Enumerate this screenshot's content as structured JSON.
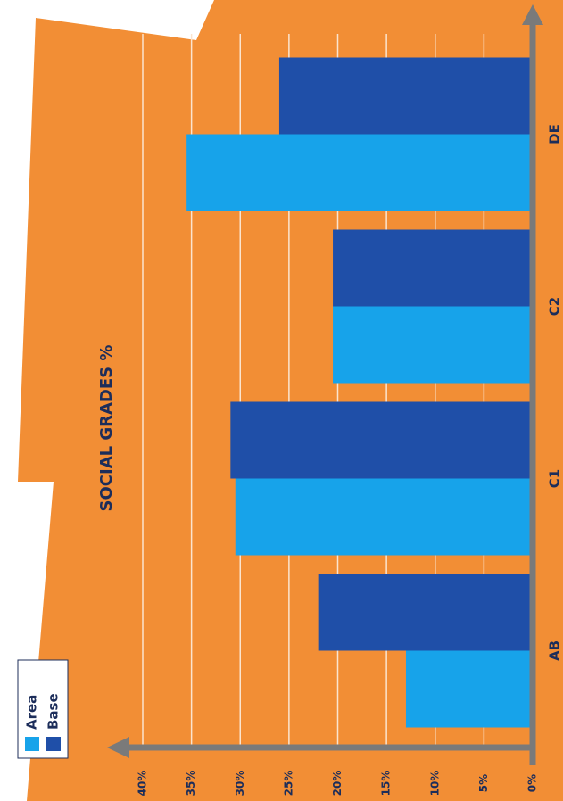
{
  "chart_data": {
    "type": "bar",
    "title": "SOCIAL GRADES %",
    "categories": [
      "AB",
      "C1",
      "C2",
      "DE"
    ],
    "series": [
      {
        "name": "Area",
        "color": "#17a3ea",
        "values": [
          13,
          30.5,
          20.5,
          35.5
        ]
      },
      {
        "name": "Base",
        "color": "#1f4fa8",
        "values": [
          22,
          31,
          20.5,
          26
        ]
      }
    ],
    "ylim": [
      0,
      40
    ],
    "yticks": [
      {
        "value": 0,
        "label": "0%"
      },
      {
        "value": 5,
        "label": "5%"
      },
      {
        "value": 10,
        "label": "10%"
      },
      {
        "value": 15,
        "label": "15%"
      },
      {
        "value": 20,
        "label": "20%"
      },
      {
        "value": 25,
        "label": "25%"
      },
      {
        "value": 30,
        "label": "30%"
      },
      {
        "value": 35,
        "label": "35%"
      },
      {
        "value": 40,
        "label": "40%"
      }
    ],
    "grid": true
  }
}
